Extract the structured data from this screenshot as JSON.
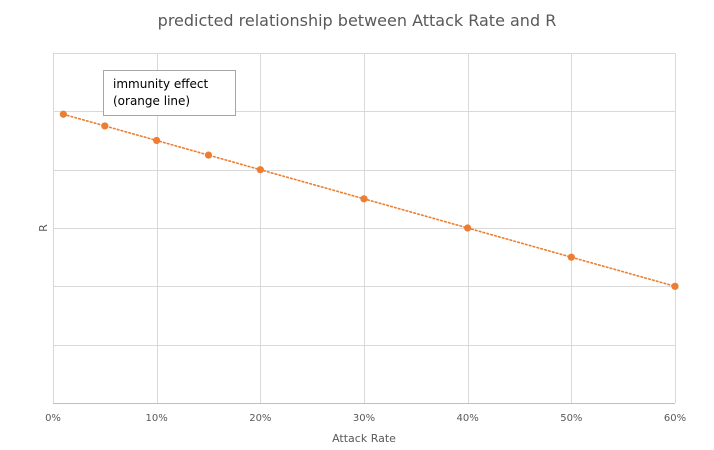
{
  "chart_data": {
    "type": "line",
    "title": "predicted relationship between Attack Rate and R",
    "xlabel": "Attack Rate",
    "ylabel": "R",
    "xlim": [
      0,
      60
    ],
    "ylim": [
      0,
      6
    ],
    "x_ticks": [
      0,
      10,
      20,
      30,
      40,
      50,
      60
    ],
    "x_tick_labels": [
      "0%",
      "10%",
      "20%",
      "30%",
      "40%",
      "50%",
      "60%"
    ],
    "y_tick_labels_shown": false,
    "grid": true,
    "series": [
      {
        "color": "#ed7d31",
        "line_style": "dotted",
        "markers": true,
        "x": [
          1,
          5,
          10,
          15,
          20,
          30,
          40,
          50,
          60
        ],
        "y": [
          4.95,
          4.75,
          4.5,
          4.25,
          4.0,
          3.5,
          3.0,
          2.5,
          2.0
        ]
      }
    ],
    "annotations": [
      {
        "lines": [
          "immunity effect",
          "(orange line)"
        ]
      }
    ]
  }
}
